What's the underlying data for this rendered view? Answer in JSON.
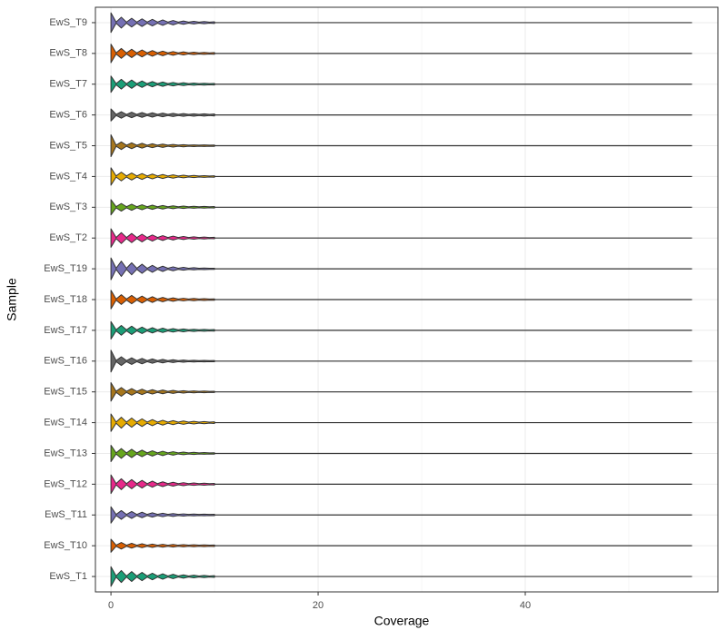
{
  "chart_data": {
    "type": "violin",
    "x_label": "Coverage",
    "y_label": "Sample",
    "xlim": [
      -1.5,
      58.6
    ],
    "xticks": [
      0,
      20,
      40
    ],
    "grid": true,
    "x": [
      0,
      1,
      2,
      3,
      4,
      5,
      6,
      7,
      8,
      9,
      10
    ],
    "series": [
      {
        "name": "EwS_T1",
        "color": "#1b9e77",
        "values": [
          0.9,
          0.55,
          0.45,
          0.38,
          0.3,
          0.25,
          0.2,
          0.15,
          0.12,
          0.1,
          0.08
        ],
        "max": 56.1
      },
      {
        "name": "EwS_T10",
        "color": "#d95f02",
        "values": [
          0.6,
          0.3,
          0.22,
          0.18,
          0.15,
          0.13,
          0.12,
          0.1,
          0.09,
          0.08,
          0.07
        ],
        "max": 56.1
      },
      {
        "name": "EwS_T11",
        "color": "#7570b3",
        "values": [
          0.75,
          0.4,
          0.32,
          0.25,
          0.2,
          0.16,
          0.13,
          0.1,
          0.08,
          0.07,
          0.06
        ],
        "max": 56.1
      },
      {
        "name": "EwS_T12",
        "color": "#e7298a",
        "values": [
          0.85,
          0.5,
          0.42,
          0.35,
          0.28,
          0.22,
          0.18,
          0.14,
          0.11,
          0.09,
          0.07
        ],
        "max": 56.1
      },
      {
        "name": "EwS_T13",
        "color": "#66a61e",
        "values": [
          0.75,
          0.45,
          0.38,
          0.3,
          0.24,
          0.2,
          0.16,
          0.12,
          0.1,
          0.08,
          0.06
        ],
        "max": 56.1
      },
      {
        "name": "EwS_T14",
        "color": "#e6ab02",
        "values": [
          0.8,
          0.5,
          0.42,
          0.35,
          0.28,
          0.22,
          0.18,
          0.15,
          0.12,
          0.1,
          0.08
        ],
        "max": 56.1
      },
      {
        "name": "EwS_T15",
        "color": "#a6761d",
        "values": [
          0.85,
          0.4,
          0.3,
          0.25,
          0.2,
          0.17,
          0.14,
          0.11,
          0.09,
          0.08,
          0.06
        ],
        "max": 56.1
      },
      {
        "name": "EwS_T16",
        "color": "#666666",
        "values": [
          1.0,
          0.4,
          0.3,
          0.25,
          0.2,
          0.16,
          0.13,
          0.1,
          0.08,
          0.07,
          0.06
        ],
        "max": 56.1
      },
      {
        "name": "EwS_T17",
        "color": "#1b9e77",
        "values": [
          0.8,
          0.45,
          0.38,
          0.3,
          0.24,
          0.2,
          0.16,
          0.13,
          0.1,
          0.08,
          0.07
        ],
        "max": 56.1
      },
      {
        "name": "EwS_T18",
        "color": "#d95f02",
        "values": [
          0.85,
          0.45,
          0.38,
          0.32,
          0.26,
          0.2,
          0.16,
          0.12,
          0.1,
          0.08,
          0.06
        ],
        "max": 56.1
      },
      {
        "name": "EwS_T19",
        "color": "#7570b3",
        "values": [
          1.0,
          0.7,
          0.55,
          0.42,
          0.32,
          0.24,
          0.18,
          0.13,
          0.1,
          0.07,
          0.05
        ],
        "max": 56.1
      },
      {
        "name": "EwS_T2",
        "color": "#e7298a",
        "values": [
          0.85,
          0.5,
          0.42,
          0.35,
          0.28,
          0.22,
          0.18,
          0.14,
          0.11,
          0.09,
          0.07
        ],
        "max": 56.1
      },
      {
        "name": "EwS_T3",
        "color": "#66a61e",
        "values": [
          0.7,
          0.35,
          0.28,
          0.23,
          0.19,
          0.16,
          0.13,
          0.11,
          0.09,
          0.08,
          0.07
        ],
        "max": 56.1
      },
      {
        "name": "EwS_T4",
        "color": "#e6ab02",
        "values": [
          0.8,
          0.4,
          0.32,
          0.27,
          0.22,
          0.18,
          0.15,
          0.12,
          0.1,
          0.08,
          0.07
        ],
        "max": 56.1
      },
      {
        "name": "EwS_T5",
        "color": "#a6761d",
        "values": [
          1.0,
          0.35,
          0.27,
          0.22,
          0.18,
          0.15,
          0.12,
          0.1,
          0.08,
          0.07,
          0.06
        ],
        "max": 56.1
      },
      {
        "name": "EwS_T6",
        "color": "#666666",
        "values": [
          0.55,
          0.3,
          0.25,
          0.22,
          0.2,
          0.17,
          0.15,
          0.13,
          0.11,
          0.1,
          0.09
        ],
        "max": 56.1
      },
      {
        "name": "EwS_T7",
        "color": "#1b9e77",
        "values": [
          0.75,
          0.45,
          0.38,
          0.3,
          0.24,
          0.2,
          0.16,
          0.13,
          0.1,
          0.08,
          0.07
        ],
        "max": 56.1
      },
      {
        "name": "EwS_T8",
        "color": "#d95f02",
        "values": [
          0.85,
          0.45,
          0.38,
          0.32,
          0.26,
          0.21,
          0.17,
          0.14,
          0.11,
          0.09,
          0.08
        ],
        "max": 56.1
      },
      {
        "name": "EwS_T9",
        "color": "#7570b3",
        "values": [
          0.9,
          0.5,
          0.4,
          0.35,
          0.3,
          0.25,
          0.2,
          0.15,
          0.12,
          0.1,
          0.08
        ],
        "max": 56.1
      }
    ]
  }
}
